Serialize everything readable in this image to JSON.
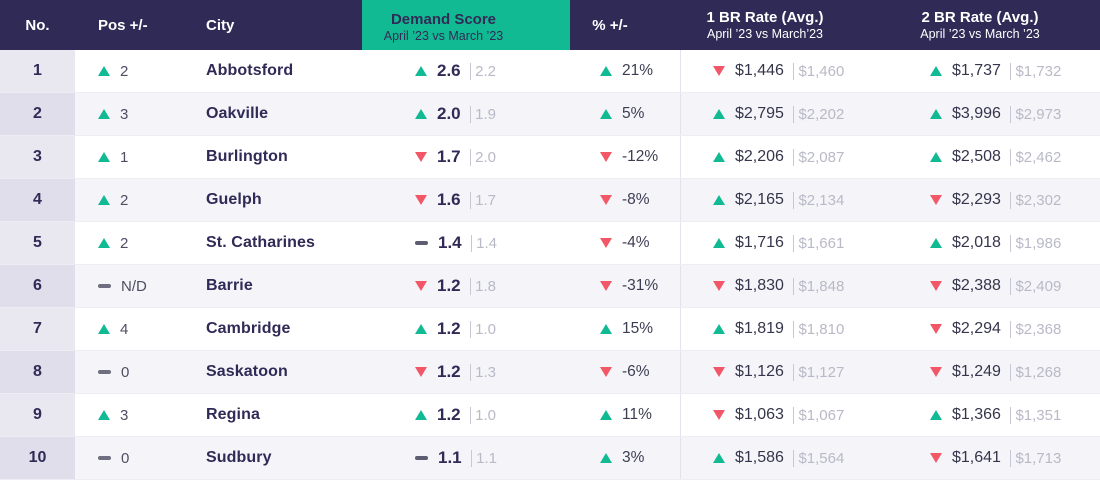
{
  "colors": {
    "header_bg": "#302a56",
    "accent": "#12ba93",
    "up": "#12ba93",
    "down": "#f25767",
    "text_dark": "#302a56",
    "text_muted": "#b9b9c7",
    "row_alt": "#f4f4f9",
    "numcol_odd": "#e9e8f1",
    "numcol_even": "#dfdeea",
    "border": "#ededf4",
    "divider": "#e3e3ed",
    "pipe": "#c8c8d5"
  },
  "chart_data": {
    "type": "table",
    "title": "City rental demand ranking, April 2023 vs March 2023",
    "columns": [
      {
        "id": "no",
        "title": "No."
      },
      {
        "id": "pos",
        "title": "Pos +/-"
      },
      {
        "id": "city",
        "title": "City"
      },
      {
        "id": "demand",
        "title": "Demand Score",
        "subtitle": "April ’23 vs March ’23"
      },
      {
        "id": "pct",
        "title": "% +/-"
      },
      {
        "id": "br1",
        "title": "1 BR Rate (Avg.)",
        "subtitle": "April ’23 vs March’23"
      },
      {
        "id": "br2",
        "title": "2 BR Rate (Avg.)",
        "subtitle": "April ’23 vs March ’23"
      }
    ],
    "rows": [
      {
        "no": "1",
        "pos": {
          "dir": "up",
          "value": "2"
        },
        "city": "Abbotsford",
        "demand": {
          "dir": "up",
          "value": "2.6",
          "prev": "2.2"
        },
        "pct": {
          "dir": "up",
          "value": "21%"
        },
        "br1": {
          "dir": "down",
          "value": "$1,446",
          "prev": "$1,460"
        },
        "br2": {
          "dir": "up",
          "value": "$1,737",
          "prev": "$1,732"
        }
      },
      {
        "no": "2",
        "pos": {
          "dir": "up",
          "value": "3"
        },
        "city": "Oakville",
        "demand": {
          "dir": "up",
          "value": "2.0",
          "prev": "1.9"
        },
        "pct": {
          "dir": "up",
          "value": "5%"
        },
        "br1": {
          "dir": "up",
          "value": "$2,795",
          "prev": "$2,202"
        },
        "br2": {
          "dir": "up",
          "value": "$3,996",
          "prev": "$2,973"
        }
      },
      {
        "no": "3",
        "pos": {
          "dir": "up",
          "value": "1"
        },
        "city": "Burlington",
        "demand": {
          "dir": "down",
          "value": "1.7",
          "prev": "2.0"
        },
        "pct": {
          "dir": "down",
          "value": "-12%"
        },
        "br1": {
          "dir": "up",
          "value": "$2,206",
          "prev": "$2,087"
        },
        "br2": {
          "dir": "up",
          "value": "$2,508",
          "prev": "$2,462"
        }
      },
      {
        "no": "4",
        "pos": {
          "dir": "up",
          "value": "2"
        },
        "city": "Guelph",
        "demand": {
          "dir": "down",
          "value": "1.6",
          "prev": "1.7"
        },
        "pct": {
          "dir": "down",
          "value": "-8%"
        },
        "br1": {
          "dir": "up",
          "value": "$2,165",
          "prev": "$2,134"
        },
        "br2": {
          "dir": "down",
          "value": "$2,293",
          "prev": "$2,302"
        }
      },
      {
        "no": "5",
        "pos": {
          "dir": "up",
          "value": "2"
        },
        "city": "St. Catharines",
        "demand": {
          "dir": "flat",
          "value": "1.4",
          "prev": "1.4"
        },
        "pct": {
          "dir": "down",
          "value": "-4%"
        },
        "br1": {
          "dir": "up",
          "value": "$1,716",
          "prev": "$1,661"
        },
        "br2": {
          "dir": "up",
          "value": "$2,018",
          "prev": "$1,986"
        }
      },
      {
        "no": "6",
        "pos": {
          "dir": "flat",
          "value": "N/D"
        },
        "city": "Barrie",
        "demand": {
          "dir": "down",
          "value": "1.2",
          "prev": "1.8"
        },
        "pct": {
          "dir": "down",
          "value": "-31%"
        },
        "br1": {
          "dir": "down",
          "value": "$1,830",
          "prev": "$1,848"
        },
        "br2": {
          "dir": "down",
          "value": "$2,388",
          "prev": "$2,409"
        }
      },
      {
        "no": "7",
        "pos": {
          "dir": "up",
          "value": "4"
        },
        "city": "Cambridge",
        "demand": {
          "dir": "up",
          "value": "1.2",
          "prev": "1.0"
        },
        "pct": {
          "dir": "up",
          "value": "15%"
        },
        "br1": {
          "dir": "up",
          "value": "$1,819",
          "prev": "$1,810"
        },
        "br2": {
          "dir": "down",
          "value": "$2,294",
          "prev": "$2,368"
        }
      },
      {
        "no": "8",
        "pos": {
          "dir": "flat",
          "value": "0"
        },
        "city": "Saskatoon",
        "demand": {
          "dir": "down",
          "value": "1.2",
          "prev": "1.3"
        },
        "pct": {
          "dir": "down",
          "value": "-6%"
        },
        "br1": {
          "dir": "down",
          "value": "$1,126",
          "prev": "$1,127"
        },
        "br2": {
          "dir": "down",
          "value": "$1,249",
          "prev": "$1,268"
        }
      },
      {
        "no": "9",
        "pos": {
          "dir": "up",
          "value": "3"
        },
        "city": "Regina",
        "demand": {
          "dir": "up",
          "value": "1.2",
          "prev": "1.0"
        },
        "pct": {
          "dir": "up",
          "value": "11%"
        },
        "br1": {
          "dir": "down",
          "value": "$1,063",
          "prev": "$1,067"
        },
        "br2": {
          "dir": "up",
          "value": "$1,366",
          "prev": "$1,351"
        }
      },
      {
        "no": "10",
        "pos": {
          "dir": "flat",
          "value": "0"
        },
        "city": "Sudbury",
        "demand": {
          "dir": "flat",
          "value": "1.1",
          "prev": "1.1"
        },
        "pct": {
          "dir": "up",
          "value": "3%"
        },
        "br1": {
          "dir": "up",
          "value": "$1,586",
          "prev": "$1,564"
        },
        "br2": {
          "dir": "down",
          "value": "$1,641",
          "prev": "$1,713"
        }
      }
    ]
  }
}
